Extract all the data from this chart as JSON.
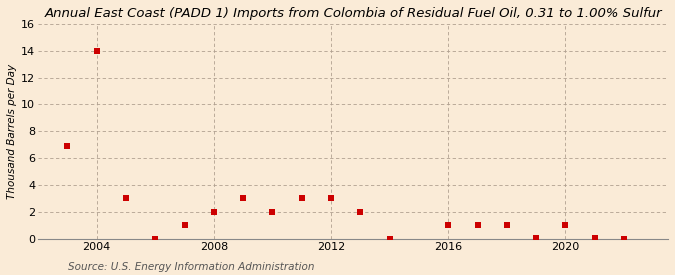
{
  "title": "Annual East Coast (PADD 1) Imports from Colombia of Residual Fuel Oil, 0.31 to 1.00% Sulfur",
  "ylabel": "Thousand Barrels per Day",
  "source": "Source: U.S. Energy Information Administration",
  "background_color": "#faebd7",
  "plot_background_color": "#faebd7",
  "years": [
    2003,
    2004,
    2005,
    2006,
    2007,
    2008,
    2009,
    2010,
    2011,
    2012,
    2013,
    2014,
    2016,
    2017,
    2018,
    2019,
    2020,
    2021,
    2022
  ],
  "values": [
    6.9,
    14.0,
    3.0,
    0,
    1.0,
    2.0,
    3.0,
    2.0,
    3.0,
    3.0,
    2.0,
    0,
    1.0,
    1.0,
    1.0,
    0.05,
    1.0,
    0.05,
    0
  ],
  "marker_color": "#cc0000",
  "marker_size": 4,
  "xlim": [
    2002.0,
    2023.5
  ],
  "ylim": [
    0,
    16
  ],
  "yticks": [
    0,
    2,
    4,
    6,
    8,
    10,
    12,
    14,
    16
  ],
  "xticks": [
    2004,
    2008,
    2012,
    2016,
    2020
  ],
  "grid_color": "#b0a090",
  "title_fontsize": 9.5,
  "axis_fontsize": 7.5,
  "tick_fontsize": 8,
  "source_fontsize": 7.5
}
